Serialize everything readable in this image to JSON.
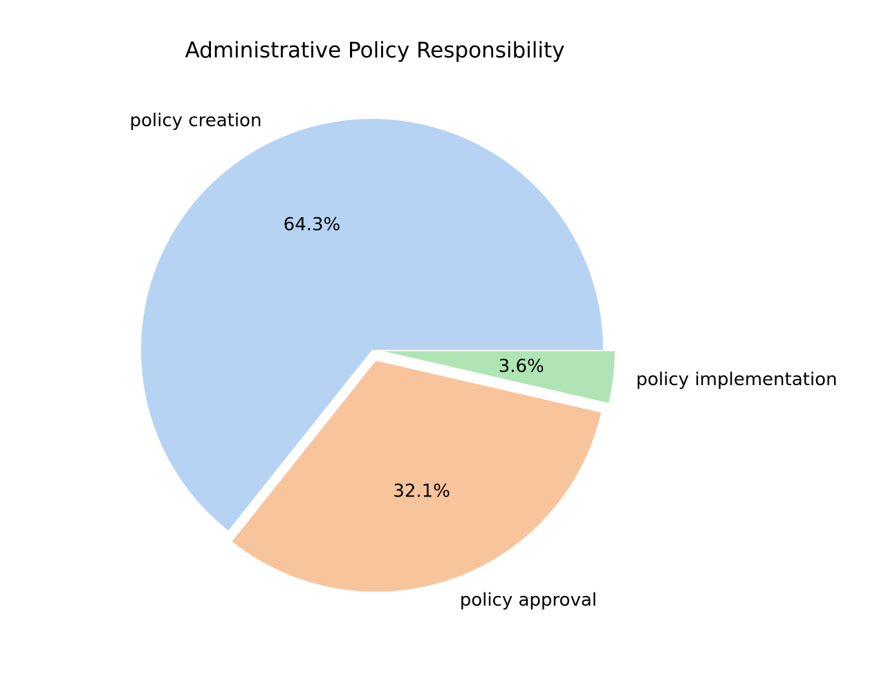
{
  "chart_data": {
    "type": "pie",
    "title": "Administrative Policy Responsibility",
    "slices": [
      {
        "label": "policy creation",
        "value": 64.3,
        "pct_label": "64.3%",
        "color": "#b7d3f3",
        "exploded": false
      },
      {
        "label": "policy approval",
        "value": 32.1,
        "pct_label": "32.1%",
        "color": "#f7c49c",
        "exploded": true
      },
      {
        "label": "policy implementation",
        "value": 3.6,
        "pct_label": "3.6%",
        "color": "#afe5b5",
        "exploded": true
      }
    ],
    "start_angle_deg": 0,
    "direction": "counterclockwise",
    "legend": "none"
  }
}
